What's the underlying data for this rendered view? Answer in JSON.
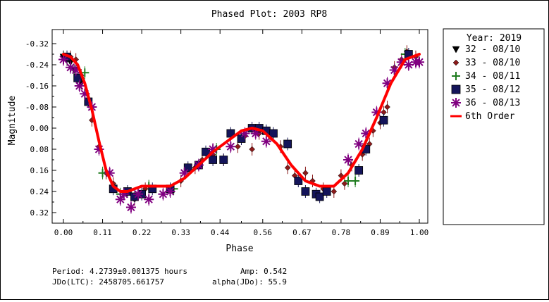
{
  "chart_data": {
    "type": "scatter",
    "title": "Phased Plot: 2003 RP8",
    "xlabel": "Phase",
    "ylabel": "Magnitude",
    "xlim": [
      0.0,
      1.0
    ],
    "ylim": [
      -0.36,
      0.36
    ],
    "y_inverted": true,
    "x_ticks": [
      "0.00",
      "0.11",
      "0.22",
      "0.33",
      "0.44",
      "0.56",
      "0.67",
      "0.78",
      "0.89",
      "1.00"
    ],
    "y_ticks": [
      "-0.32",
      "-0.24",
      "-0.16",
      "-0.08",
      "0.00",
      "0.08",
      "0.16",
      "0.24",
      "0.32"
    ],
    "grid": false,
    "legend_position": "right",
    "legend_title": "Year: 2019",
    "series": [
      {
        "name": "32 - 08/10",
        "marker": "triangle-down",
        "color": "#000000",
        "points": [
          [
            0.0,
            -0.27
          ],
          [
            0.01,
            -0.26
          ],
          [
            0.02,
            -0.25
          ],
          [
            0.03,
            -0.22
          ],
          [
            0.04,
            -0.19
          ],
          [
            0.05,
            -0.17
          ]
        ]
      },
      {
        "name": "33 - 08/10",
        "marker": "diamond",
        "color": "#8b1a1a",
        "points": [
          [
            0.02,
            -0.27
          ],
          [
            0.035,
            -0.26
          ],
          [
            0.05,
            -0.2
          ],
          [
            0.07,
            -0.11
          ],
          [
            0.08,
            -0.03
          ],
          [
            0.1,
            0.07
          ],
          [
            0.12,
            0.17
          ],
          [
            0.14,
            0.21
          ],
          [
            0.2,
            0.27
          ],
          [
            0.23,
            0.23
          ],
          [
            0.3,
            0.24
          ],
          [
            0.33,
            0.2
          ],
          [
            0.37,
            0.15
          ],
          [
            0.39,
            0.12
          ],
          [
            0.42,
            0.1
          ],
          [
            0.45,
            0.12
          ],
          [
            0.49,
            0.07
          ],
          [
            0.51,
            0.03
          ],
          [
            0.53,
            0.08
          ],
          [
            0.55,
            0.02
          ],
          [
            0.58,
            0.03
          ],
          [
            0.61,
            0.07
          ],
          [
            0.63,
            0.15
          ],
          [
            0.65,
            0.18
          ],
          [
            0.68,
            0.17
          ],
          [
            0.7,
            0.2
          ],
          [
            0.73,
            0.23
          ],
          [
            0.76,
            0.24
          ],
          [
            0.78,
            0.18
          ],
          [
            0.79,
            0.21
          ],
          [
            0.81,
            0.14
          ],
          [
            0.84,
            0.1
          ],
          [
            0.86,
            0.06
          ],
          [
            0.87,
            0.01
          ],
          [
            0.89,
            -0.02
          ],
          [
            0.9,
            -0.06
          ],
          [
            0.91,
            -0.08
          ],
          [
            0.93,
            -0.23
          ],
          [
            0.95,
            -0.26
          ],
          [
            0.965,
            -0.29
          ],
          [
            0.99,
            -0.27
          ]
        ]
      },
      {
        "name": "34 - 08/11",
        "marker": "plus",
        "color": "#1e7b1e",
        "points": [
          [
            0.06,
            -0.21
          ],
          [
            0.11,
            0.17
          ],
          [
            0.16,
            0.25
          ],
          [
            0.24,
            0.22
          ],
          [
            0.31,
            0.23
          ],
          [
            0.43,
            0.08
          ],
          [
            0.8,
            0.2
          ],
          [
            0.82,
            0.2
          ],
          [
            0.93,
            -0.22
          ],
          [
            0.96,
            -0.28
          ]
        ]
      },
      {
        "name": "35 - 08/12",
        "marker": "square",
        "color": "#14145a",
        "points": [
          [
            0.01,
            -0.27
          ],
          [
            0.04,
            -0.19
          ],
          [
            0.07,
            -0.1
          ],
          [
            0.14,
            0.23
          ],
          [
            0.18,
            0.24
          ],
          [
            0.2,
            0.26
          ],
          [
            0.22,
            0.25
          ],
          [
            0.25,
            0.23
          ],
          [
            0.3,
            0.23
          ],
          [
            0.35,
            0.15
          ],
          [
            0.38,
            0.14
          ],
          [
            0.4,
            0.09
          ],
          [
            0.42,
            0.12
          ],
          [
            0.45,
            0.12
          ],
          [
            0.47,
            0.02
          ],
          [
            0.5,
            0.04
          ],
          [
            0.53,
            0.0
          ],
          [
            0.55,
            0.0
          ],
          [
            0.57,
            0.01
          ],
          [
            0.59,
            0.02
          ],
          [
            0.63,
            0.06
          ],
          [
            0.66,
            0.2
          ],
          [
            0.68,
            0.24
          ],
          [
            0.71,
            0.25
          ],
          [
            0.72,
            0.26
          ],
          [
            0.74,
            0.24
          ],
          [
            0.83,
            0.16
          ],
          [
            0.85,
            0.08
          ],
          [
            0.9,
            -0.03
          ],
          [
            0.97,
            -0.28
          ]
        ]
      },
      {
        "name": "36 - 08/13",
        "marker": "asterisk",
        "color": "#800080",
        "points": [
          [
            0.0,
            -0.26
          ],
          [
            0.02,
            -0.23
          ],
          [
            0.035,
            -0.22
          ],
          [
            0.045,
            -0.16
          ],
          [
            0.06,
            -0.13
          ],
          [
            0.08,
            -0.08
          ],
          [
            0.1,
            0.08
          ],
          [
            0.13,
            0.17
          ],
          [
            0.16,
            0.27
          ],
          [
            0.17,
            0.25
          ],
          [
            0.19,
            0.3
          ],
          [
            0.21,
            0.25
          ],
          [
            0.24,
            0.27
          ],
          [
            0.28,
            0.25
          ],
          [
            0.3,
            0.24
          ],
          [
            0.34,
            0.17
          ],
          [
            0.38,
            0.14
          ],
          [
            0.42,
            0.08
          ],
          [
            0.47,
            0.07
          ],
          [
            0.51,
            0.02
          ],
          [
            0.54,
            0.02
          ],
          [
            0.57,
            0.05
          ],
          [
            0.8,
            0.12
          ],
          [
            0.83,
            0.06
          ],
          [
            0.85,
            0.02
          ],
          [
            0.88,
            -0.06
          ],
          [
            0.91,
            -0.17
          ],
          [
            0.93,
            -0.22
          ],
          [
            0.95,
            -0.25
          ],
          [
            0.97,
            -0.24
          ],
          [
            0.99,
            -0.25
          ],
          [
            1.0,
            -0.25
          ]
        ]
      }
    ],
    "fit": {
      "name": "6th Order",
      "color": "#ff0000",
      "points": [
        [
          0.0,
          -0.28
        ],
        [
          0.02,
          -0.27
        ],
        [
          0.04,
          -0.24
        ],
        [
          0.06,
          -0.17
        ],
        [
          0.08,
          -0.07
        ],
        [
          0.1,
          0.05
        ],
        [
          0.12,
          0.16
        ],
        [
          0.14,
          0.22
        ],
        [
          0.16,
          0.24
        ],
        [
          0.18,
          0.24
        ],
        [
          0.22,
          0.22
        ],
        [
          0.26,
          0.22
        ],
        [
          0.3,
          0.22
        ],
        [
          0.34,
          0.19
        ],
        [
          0.38,
          0.14
        ],
        [
          0.42,
          0.09
        ],
        [
          0.46,
          0.05
        ],
        [
          0.5,
          0.01
        ],
        [
          0.53,
          0.0
        ],
        [
          0.56,
          0.01
        ],
        [
          0.6,
          0.06
        ],
        [
          0.64,
          0.14
        ],
        [
          0.68,
          0.2
        ],
        [
          0.72,
          0.22
        ],
        [
          0.76,
          0.22
        ],
        [
          0.8,
          0.17
        ],
        [
          0.84,
          0.08
        ],
        [
          0.88,
          -0.04
        ],
        [
          0.92,
          -0.17
        ],
        [
          0.96,
          -0.26
        ],
        [
          1.0,
          -0.28
        ]
      ]
    },
    "annotations": {
      "period": "Period: 4.2739±0.001375 hours",
      "amp": "Amp: 0.542",
      "jdo": "JDo(LTC): 2458705.661757",
      "alpha": "alpha(JDo): 55.9"
    }
  }
}
